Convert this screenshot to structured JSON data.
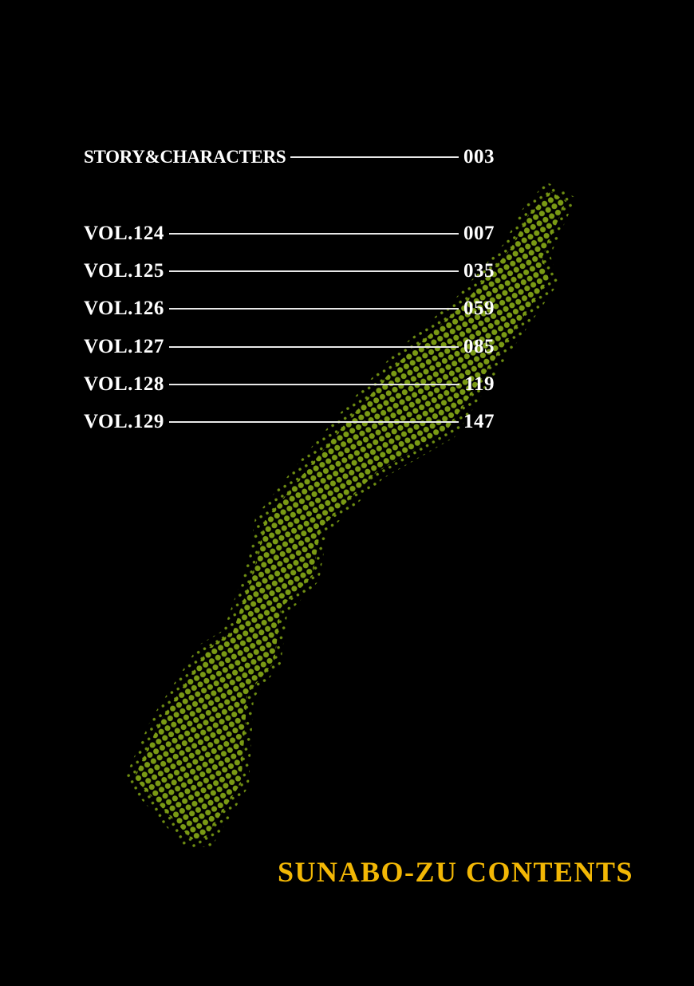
{
  "contents": {
    "entries": [
      {
        "label": "STORY&CHARACTERS",
        "page": "003"
      },
      {
        "label": "VOL.124",
        "page": "007"
      },
      {
        "label": "VOL.125",
        "page": "035"
      },
      {
        "label": "VOL.126",
        "page": "059"
      },
      {
        "label": "VOL.127",
        "page": "085"
      },
      {
        "label": "VOL.128",
        "page": "119"
      },
      {
        "label": "VOL.129",
        "page": "147"
      }
    ],
    "title": "SUNABO-ZU CONTENTS"
  },
  "colors": {
    "background": "#000000",
    "halftone": "#7a9a14",
    "title": "#f2b705",
    "text": "#ffffff"
  },
  "decoration": "halftone-sword"
}
